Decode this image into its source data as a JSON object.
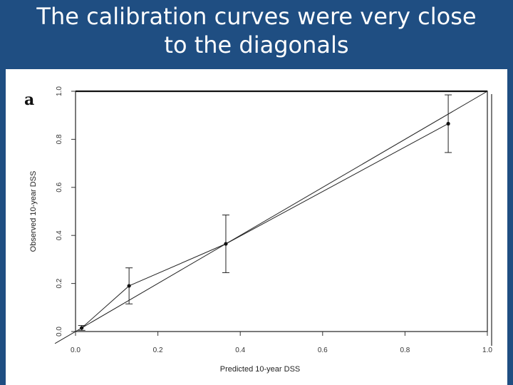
{
  "slide": {
    "title_line1": "The calibration curves were very close",
    "title_line2": "to the diagonals",
    "background_color": "#1f4e82",
    "title_color": "#ffffff"
  },
  "figure": {
    "panel_label": "a"
  },
  "chart_data": {
    "type": "line",
    "xlabel": "Predicted 10-year DSS",
    "ylabel": "Observed 10-year DSS",
    "xlim": [
      0,
      1
    ],
    "ylim": [
      0,
      1
    ],
    "xticks": [
      "0.0",
      "0.2",
      "0.4",
      "0.6",
      "0.8",
      "1.0"
    ],
    "yticks": [
      "0.0",
      "0.2",
      "0.4",
      "0.6",
      "0.8",
      "1.0"
    ],
    "grid": false,
    "legend": "none",
    "diagonal": [
      [
        0,
        0
      ],
      [
        1,
        1
      ]
    ],
    "series": [
      {
        "x": [
          0.015,
          0.13,
          0.365,
          0.905
        ],
        "y": [
          0.015,
          0.19,
          0.365,
          0.865
        ],
        "ci_low": [
          0.005,
          0.115,
          0.245,
          0.745
        ],
        "ci_high": [
          0.025,
          0.265,
          0.485,
          0.985
        ]
      }
    ]
  }
}
